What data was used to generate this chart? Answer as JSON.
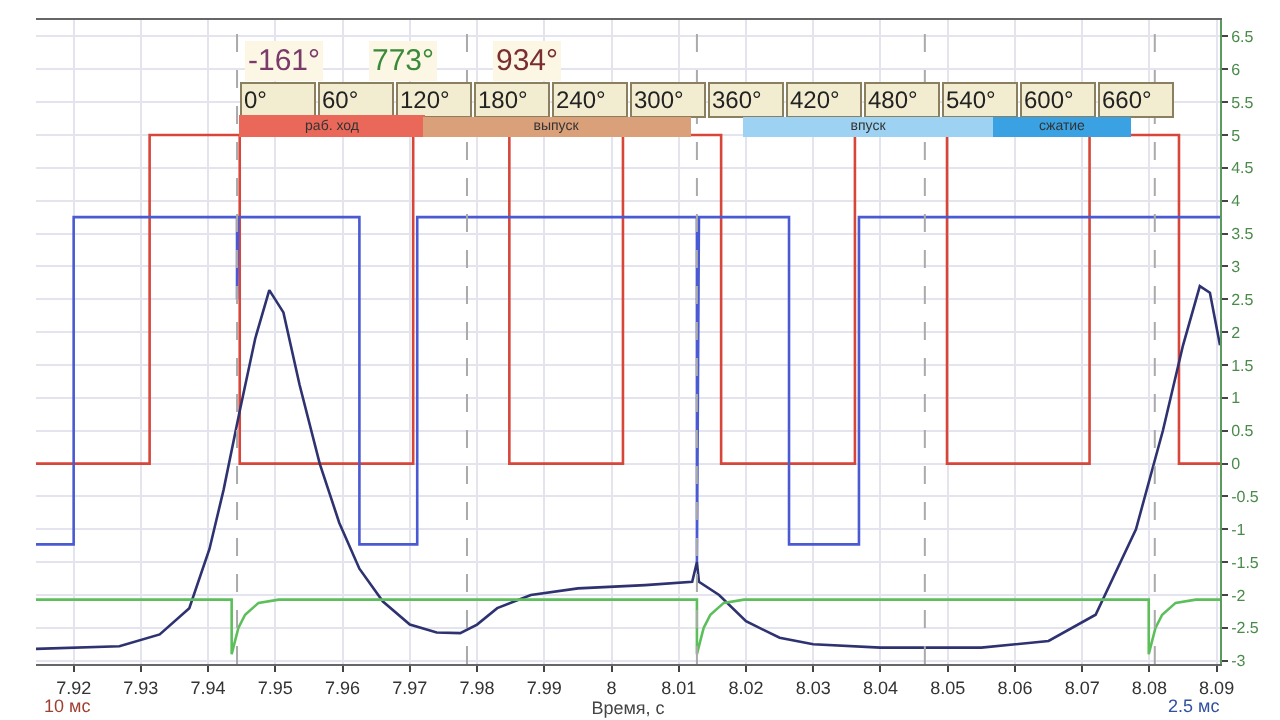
{
  "chart_data": {
    "type": "line",
    "xlabel": "Время, с",
    "annotations": [
      "-161°",
      "773°",
      "934°",
      "0°",
      "60°",
      "120°",
      "180°",
      "240°",
      "300°",
      "360°",
      "420°",
      "480°",
      "540°",
      "600°",
      "660°",
      "раб. ход",
      "выпуск",
      "впуск",
      "сжатие",
      "10 мс",
      "2.5 мс"
    ],
    "series": [
      {
        "color": "#d8463a",
        "x": [
          7.9144,
          7.9313,
          7.9313,
          7.9447,
          7.9447,
          7.9705,
          7.9705,
          7.9848,
          7.9848,
          8.0017,
          8.0017,
          8.0163,
          8.0163,
          8.0362,
          8.0362,
          8.0499,
          8.0499,
          8.0711,
          8.0711,
          8.0844,
          8.0844,
          8.0905
        ],
        "values": [
          0,
          0,
          5,
          5,
          0,
          0,
          5,
          5,
          0,
          0,
          5,
          5,
          0,
          0,
          5,
          5,
          0,
          0,
          5,
          5,
          0,
          0
        ]
      },
      {
        "color": "#4a5ad2",
        "x": [
          7.9144,
          7.92,
          7.92,
          7.9443,
          7.9443,
          7.9445,
          7.9625,
          7.9625,
          7.9711,
          7.9711,
          8.0127,
          8.0127,
          8.013,
          8.0264,
          8.0264,
          8.0368,
          8.0368,
          8.0905
        ],
        "values": [
          -1.23,
          -1.23,
          3.75,
          3.75,
          2.5,
          3.75,
          3.75,
          -1.23,
          -1.23,
          3.75,
          3.75,
          -1.5,
          3.75,
          3.75,
          -1.23,
          -1.23,
          3.75,
          3.75
        ]
      },
      {
        "color": "#2e3270",
        "x": [
          7.9144,
          7.9268,
          7.9328,
          7.9372,
          7.9402,
          7.9423,
          7.9447,
          7.947,
          7.9491,
          7.9512,
          7.9536,
          7.9566,
          7.9595,
          7.9625,
          7.966,
          7.97,
          7.974,
          7.9775,
          7.98,
          7.983,
          7.988,
          7.995,
          8.005,
          8.012,
          8.0127,
          8.013,
          8.016,
          8.02,
          8.025,
          8.03,
          8.04,
          8.055,
          8.065,
          8.072,
          8.078,
          8.082,
          8.085,
          8.0875,
          8.089,
          8.0905
        ],
        "values": [
          -2.82,
          -2.78,
          -2.6,
          -2.2,
          -1.3,
          -0.4,
          0.8,
          1.9,
          2.64,
          2.3,
          1.2,
          0,
          -0.9,
          -1.6,
          -2.1,
          -2.45,
          -2.57,
          -2.58,
          -2.45,
          -2.2,
          -2.0,
          -1.9,
          -1.85,
          -1.8,
          -1.5,
          -1.8,
          -2.0,
          -2.4,
          -2.65,
          -2.75,
          -2.8,
          -2.8,
          -2.7,
          -2.3,
          -1.0,
          0.5,
          1.8,
          2.7,
          2.6,
          1.8
        ]
      },
      {
        "color": "#5cbf5c",
        "x": [
          7.9144,
          7.9435,
          7.9435,
          7.9445,
          7.9455,
          7.9475,
          7.9505,
          8.0127,
          8.0127,
          8.0137,
          8.0147,
          8.0167,
          8.0197,
          8.0799,
          8.0799,
          8.0809,
          8.0819,
          8.0839,
          8.0869,
          8.0905
        ],
        "values": [
          -2.07,
          -2.07,
          -2.9,
          -2.5,
          -2.3,
          -2.12,
          -2.07,
          -2.07,
          -2.9,
          -2.5,
          -2.3,
          -2.12,
          -2.07,
          -2.07,
          -2.9,
          -2.5,
          -2.3,
          -2.12,
          -2.07,
          -2.07
        ]
      }
    ],
    "xlim": [
      7.9144,
      8.0905
    ],
    "xticks": [
      7.92,
      7.93,
      7.94,
      7.95,
      7.96,
      7.97,
      7.98,
      7.99,
      8,
      8.01,
      8.02,
      8.03,
      8.04,
      8.05,
      8.06,
      8.07,
      8.08,
      8.09
    ],
    "ylim": [
      -3.05,
      6.75
    ],
    "yticks": [
      -3,
      -2.5,
      -2,
      -1.5,
      -1,
      -0.5,
      0,
      0.5,
      1,
      1.5,
      2,
      2.5,
      3,
      3.5,
      4,
      4.5,
      5,
      5.5,
      6,
      6.5
    ],
    "ref_lines": [
      {
        "axis": "x",
        "value": 7.9443,
        "color": "#aaaaaa",
        "line_style": "dashed"
      },
      {
        "axis": "x",
        "value": 7.9785,
        "color": "#aaaaaa",
        "line_style": "dashed"
      },
      {
        "axis": "x",
        "value": 8.0127,
        "color": "#aaaaaa",
        "line_style": "dashed"
      },
      {
        "axis": "x",
        "value": 8.0466,
        "color": "#aaaaaa",
        "line_style": "dashed"
      },
      {
        "axis": "x",
        "value": 8.0808,
        "color": "#aaaaaa",
        "line_style": "dashed"
      }
    ],
    "grid": true,
    "marker": "none",
    "line_style": "solid"
  }
}
